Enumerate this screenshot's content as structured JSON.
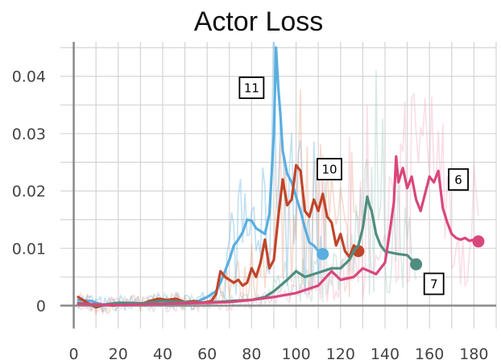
{
  "chart_data": {
    "type": "line",
    "title": "Actor Loss",
    "xlabel": "",
    "ylabel": "",
    "xlim": [
      -6,
      190
    ],
    "ylim": [
      -0.004,
      0.046
    ],
    "grid": true,
    "x_ticks": [
      0,
      20,
      40,
      60,
      80,
      100,
      120,
      140,
      160,
      180
    ],
    "x_tick_labels": [
      "0",
      "20",
      "40",
      "60",
      "80",
      "100",
      "120",
      "140",
      "160",
      "180"
    ],
    "y_ticks": [
      0,
      0.01,
      0.02,
      0.03,
      0.04
    ],
    "y_tick_labels": [
      "0",
      "0.01",
      "0.02",
      "0.03",
      "0.04"
    ],
    "series": [
      {
        "name": "11",
        "color": "#5aaee0",
        "raw_color": "#5aaee0",
        "x": [
          2,
          8,
          14,
          20,
          26,
          32,
          38,
          44,
          50,
          56,
          60,
          64,
          66,
          68,
          70,
          72,
          74,
          76,
          78,
          80,
          82,
          84,
          86,
          88,
          90,
          91,
          92,
          93,
          94,
          96,
          98,
          100,
          102,
          104,
          106,
          108,
          110,
          112
        ],
        "y": [
          0.001,
          0.0008,
          0.0,
          0.0004,
          0.0005,
          0.0003,
          0.0008,
          0.001,
          0.0006,
          0.0008,
          0.0015,
          0.0025,
          0.004,
          0.006,
          0.008,
          0.0105,
          0.0115,
          0.0128,
          0.015,
          0.0148,
          0.0135,
          0.013,
          0.0125,
          0.016,
          0.03,
          0.045,
          0.038,
          0.033,
          0.027,
          0.023,
          0.0215,
          0.019,
          0.0165,
          0.0135,
          0.011,
          0.0105,
          0.0095,
          0.009
        ],
        "end_marker": true
      },
      {
        "name": "10",
        "color": "#c0452a",
        "raw_color": "#e8a080",
        "x": [
          2,
          6,
          10,
          14,
          18,
          22,
          26,
          30,
          34,
          38,
          42,
          46,
          50,
          54,
          58,
          62,
          64,
          66,
          68,
          70,
          72,
          74,
          76,
          78,
          80,
          82,
          84,
          86,
          88,
          90,
          92,
          94,
          96,
          98,
          100,
          102,
          104,
          106,
          108,
          110,
          112,
          114,
          116,
          118,
          120,
          122,
          124,
          126,
          128
        ],
        "y": [
          0.0015,
          0.0005,
          -0.0003,
          0.0002,
          0.0,
          0.0005,
          0.0004,
          0.0002,
          0.0008,
          0.0012,
          0.001,
          0.0012,
          0.0006,
          0.0008,
          0.0005,
          0.0008,
          0.002,
          0.006,
          0.005,
          0.0045,
          0.004,
          0.0045,
          0.0035,
          0.004,
          0.0065,
          0.005,
          0.0075,
          0.0115,
          0.0065,
          0.008,
          0.0155,
          0.022,
          0.0175,
          0.0185,
          0.0245,
          0.0235,
          0.0165,
          0.0155,
          0.0185,
          0.0165,
          0.0195,
          0.0155,
          0.0145,
          0.0105,
          0.0125,
          0.0095,
          0.0085,
          0.0105,
          0.0095
        ],
        "end_marker": true
      },
      {
        "name": "7",
        "color": "#4f8d7f",
        "raw_color": "#9cc7bc",
        "x": [
          2,
          10,
          20,
          30,
          40,
          50,
          60,
          70,
          80,
          86,
          90,
          96,
          100,
          104,
          108,
          112,
          116,
          120,
          124,
          126,
          128,
          130,
          132,
          133,
          134,
          136,
          138,
          140,
          142,
          146,
          150,
          154
        ],
        "y": [
          0.0005,
          0.0,
          0.0005,
          0.0004,
          0.0008,
          0.0006,
          0.0005,
          0.0008,
          0.001,
          0.0015,
          0.0025,
          0.0045,
          0.006,
          0.005,
          0.0055,
          0.006,
          0.0065,
          0.0065,
          0.008,
          0.0095,
          0.0105,
          0.0135,
          0.019,
          0.0175,
          0.0165,
          0.0125,
          0.0105,
          0.0095,
          0.0093,
          0.009,
          0.0088,
          0.0072
        ],
        "end_marker": true
      },
      {
        "name": "6",
        "color": "#d9467c",
        "raw_color": "#f2a7c2",
        "x": [
          2,
          20,
          40,
          60,
          70,
          80,
          90,
          100,
          110,
          116,
          120,
          126,
          130,
          136,
          140,
          142,
          144,
          145,
          146,
          148,
          150,
          152,
          154,
          156,
          158,
          160,
          162,
          164,
          166,
          168,
          170,
          172,
          174,
          176,
          178,
          180,
          182
        ],
        "y": [
          0.0003,
          0.0001,
          0.0003,
          0.0005,
          0.0006,
          0.001,
          0.0015,
          0.0022,
          0.0035,
          0.006,
          0.0045,
          0.005,
          0.0065,
          0.0055,
          0.0075,
          0.0125,
          0.018,
          0.026,
          0.0215,
          0.024,
          0.0205,
          0.0225,
          0.0185,
          0.0165,
          0.0195,
          0.0225,
          0.0215,
          0.0235,
          0.017,
          0.0145,
          0.0125,
          0.0118,
          0.0115,
          0.0118,
          0.0113,
          0.0115,
          0.0112
        ],
        "end_marker": true
      }
    ],
    "labels": [
      {
        "text": "11",
        "x": 80,
        "y": 0.038
      },
      {
        "text": "10",
        "x": 115,
        "y": 0.0238
      },
      {
        "text": "6",
        "x": 173,
        "y": 0.022
      },
      {
        "text": "7",
        "x": 162,
        "y": 0.0038
      }
    ]
  }
}
